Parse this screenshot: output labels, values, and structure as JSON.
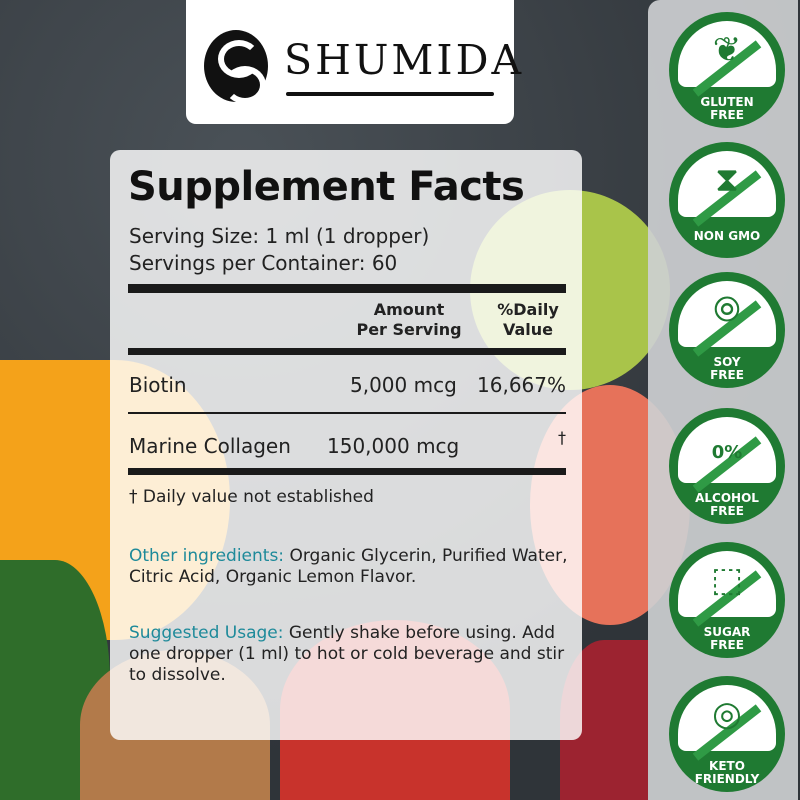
{
  "brand": {
    "name": "SHUMIDA"
  },
  "facts": {
    "title": "Supplement Facts",
    "serving_size": "Serving Size: 1 ml (1 dropper)",
    "servings_per_container": "Servings per Container: 60",
    "header_amount": "Amount\nPer Serving",
    "header_dv": "%Daily\nValue",
    "rows": [
      {
        "name": "Biotin",
        "amount": "5,000 mcg",
        "dv": "16,667%"
      },
      {
        "name": "Marine Collagen",
        "amount": "150,000 mcg",
        "dv": "†"
      }
    ],
    "footnote": "† Daily value not established"
  },
  "other_ingredients": {
    "label": "Other ingredients:",
    "text": " Organic Glycerin, Purified Water, Citric Acid, Organic Lemon Flavor."
  },
  "suggested_usage": {
    "label": "Suggested Usage:",
    "text": " Gently shake before using. Add one dropper (1 ml) to hot or cold beverage and stir to dissolve."
  },
  "badges": [
    {
      "label": "GLUTEN\nFREE",
      "icon": "wheat-icon"
    },
    {
      "label": "NON GMO",
      "icon": "dna-icon"
    },
    {
      "label": "SOY\nFREE",
      "icon": "soybean-icon"
    },
    {
      "label": "ALCOHOL\nFREE",
      "icon": "drop-icon",
      "icon_text": "0%"
    },
    {
      "label": "SUGAR\nFREE",
      "icon": "sugar-cube-icon"
    },
    {
      "label": "KETO\nFRIENDLY",
      "icon": "avocado-icon"
    }
  ],
  "colors": {
    "badge_green": "#1f7a32",
    "accent_teal": "#1e8a9a"
  }
}
